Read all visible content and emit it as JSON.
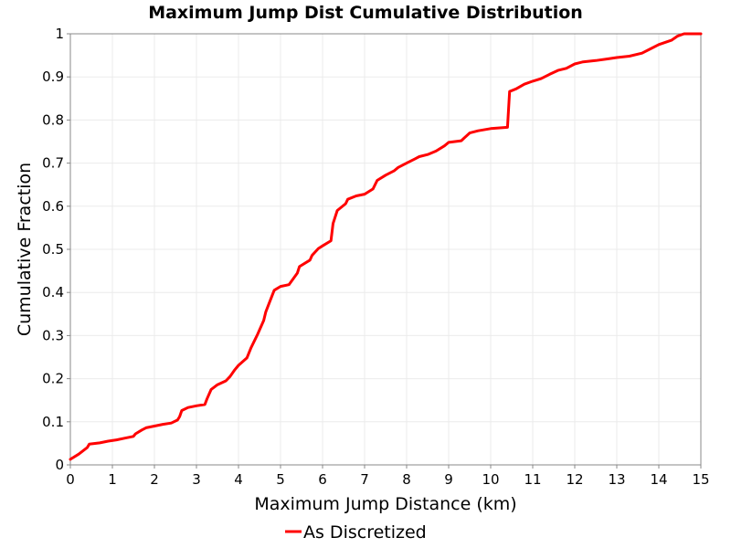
{
  "chart_data": {
    "type": "line",
    "title": "Maximum Jump Dist Cumulative Distribution",
    "xlabel": "Maximum Jump Distance (km)",
    "ylabel": "Cumulative Fraction",
    "xlim": [
      0,
      15
    ],
    "ylim": [
      0,
      1
    ],
    "x_ticks": [
      "0",
      "1",
      "2",
      "3",
      "4",
      "5",
      "6",
      "7",
      "8",
      "9",
      "10",
      "11",
      "12",
      "13",
      "14",
      "15"
    ],
    "y_ticks": [
      "0",
      "0.1",
      "0.2",
      "0.3",
      "0.4",
      "0.5",
      "0.6",
      "0.7",
      "0.8",
      "0.9",
      "1"
    ],
    "grid": true,
    "legend_position": "bottom-center",
    "series": [
      {
        "name": "As Discretized",
        "color": "#ff0000",
        "x": [
          0,
          0.2,
          0.4,
          0.45,
          0.7,
          0.9,
          1.1,
          1.3,
          1.5,
          1.55,
          1.7,
          1.8,
          2.0,
          2.2,
          2.4,
          2.55,
          2.6,
          2.65,
          2.8,
          3.0,
          3.2,
          3.25,
          3.35,
          3.5,
          3.7,
          3.8,
          3.9,
          4.0,
          4.2,
          4.3,
          4.4,
          4.45,
          4.6,
          4.65,
          4.75,
          4.85,
          5.0,
          5.2,
          5.4,
          5.45,
          5.7,
          5.75,
          5.9,
          6.0,
          6.2,
          6.25,
          6.35,
          6.55,
          6.6,
          6.8,
          7.0,
          7.2,
          7.3,
          7.5,
          7.7,
          7.8,
          8.0,
          8.2,
          8.3,
          8.5,
          8.7,
          8.9,
          9.0,
          9.3,
          9.5,
          9.7,
          10.0,
          10.4,
          10.45,
          10.6,
          10.8,
          11.0,
          11.2,
          11.4,
          11.6,
          11.8,
          12.0,
          12.2,
          12.5,
          12.8,
          13.0,
          13.3,
          13.6,
          13.8,
          14.0,
          14.3,
          14.45,
          14.6,
          15.0
        ],
        "y": [
          0.013,
          0.025,
          0.04,
          0.048,
          0.051,
          0.055,
          0.058,
          0.062,
          0.066,
          0.072,
          0.081,
          0.086,
          0.09,
          0.094,
          0.097,
          0.104,
          0.112,
          0.126,
          0.133,
          0.137,
          0.14,
          0.153,
          0.175,
          0.186,
          0.195,
          0.205,
          0.219,
          0.231,
          0.248,
          0.272,
          0.292,
          0.302,
          0.335,
          0.355,
          0.38,
          0.405,
          0.414,
          0.418,
          0.445,
          0.46,
          0.475,
          0.486,
          0.502,
          0.508,
          0.52,
          0.56,
          0.59,
          0.606,
          0.616,
          0.624,
          0.628,
          0.64,
          0.66,
          0.672,
          0.682,
          0.69,
          0.7,
          0.71,
          0.715,
          0.72,
          0.728,
          0.74,
          0.748,
          0.752,
          0.77,
          0.775,
          0.78,
          0.783,
          0.866,
          0.872,
          0.883,
          0.89,
          0.896,
          0.906,
          0.915,
          0.92,
          0.93,
          0.935,
          0.938,
          0.942,
          0.945,
          0.948,
          0.955,
          0.965,
          0.975,
          0.985,
          0.995,
          1.0,
          1.0
        ]
      }
    ]
  }
}
